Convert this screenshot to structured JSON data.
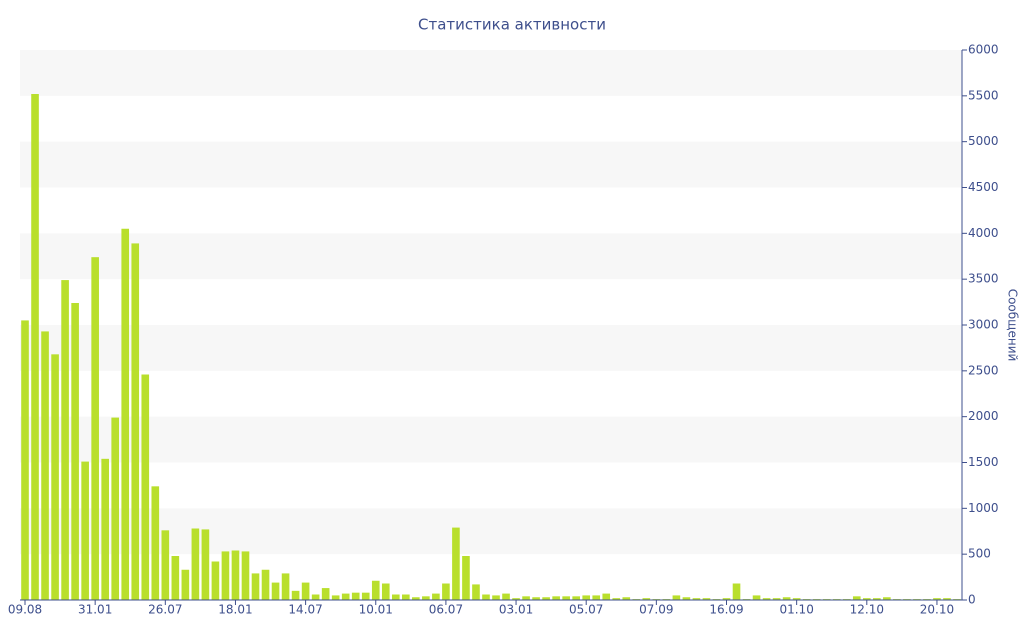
{
  "chart_data": {
    "type": "bar",
    "title": "Статистика активности",
    "y_label": "Сообщений",
    "categories": [
      "09.08",
      null,
      null,
      null,
      null,
      null,
      null,
      "31.01",
      null,
      null,
      null,
      null,
      null,
      null,
      "26.07",
      null,
      null,
      null,
      null,
      null,
      null,
      "18.01",
      null,
      null,
      null,
      null,
      null,
      null,
      "14.07",
      null,
      null,
      null,
      null,
      null,
      null,
      "10.01",
      null,
      null,
      null,
      null,
      null,
      null,
      "06.07",
      null,
      null,
      null,
      null,
      null,
      null,
      "03.01",
      null,
      null,
      null,
      null,
      null,
      null,
      "05.07",
      null,
      null,
      null,
      null,
      null,
      null,
      "07.09",
      null,
      null,
      null,
      null,
      null,
      null,
      "16.09",
      null,
      null,
      null,
      null,
      null,
      null,
      "01.10",
      null,
      null,
      null,
      null,
      null,
      null,
      "12.10",
      null,
      null,
      null,
      null,
      null,
      null,
      "20.10",
      null,
      null
    ],
    "values": [
      3050,
      5520,
      2930,
      2680,
      3490,
      3240,
      1510,
      3740,
      1540,
      1990,
      4050,
      3890,
      2460,
      1240,
      760,
      480,
      330,
      780,
      770,
      420,
      530,
      540,
      530,
      290,
      330,
      190,
      290,
      100,
      190,
      60,
      130,
      50,
      70,
      80,
      80,
      210,
      180,
      60,
      60,
      30,
      40,
      70,
      180,
      790,
      480,
      170,
      60,
      50,
      70,
      20,
      40,
      30,
      30,
      40,
      40,
      40,
      50,
      50,
      70,
      20,
      30,
      10,
      20,
      10,
      10,
      50,
      30,
      20,
      20,
      10,
      20,
      180,
      10,
      50,
      20,
      20,
      30,
      20,
      10,
      10,
      10,
      10,
      10,
      40,
      20,
      20,
      30,
      10,
      10,
      10,
      10,
      20,
      20,
      10
    ],
    "color": "#b9df2c",
    "ylim": [
      0,
      6000
    ],
    "yticks": [
      0,
      500,
      1000,
      1500,
      2000,
      2500,
      3000,
      3500,
      4000,
      4500,
      5000,
      5500,
      6000
    ],
    "grid": true,
    "y_axis_side": "right"
  }
}
